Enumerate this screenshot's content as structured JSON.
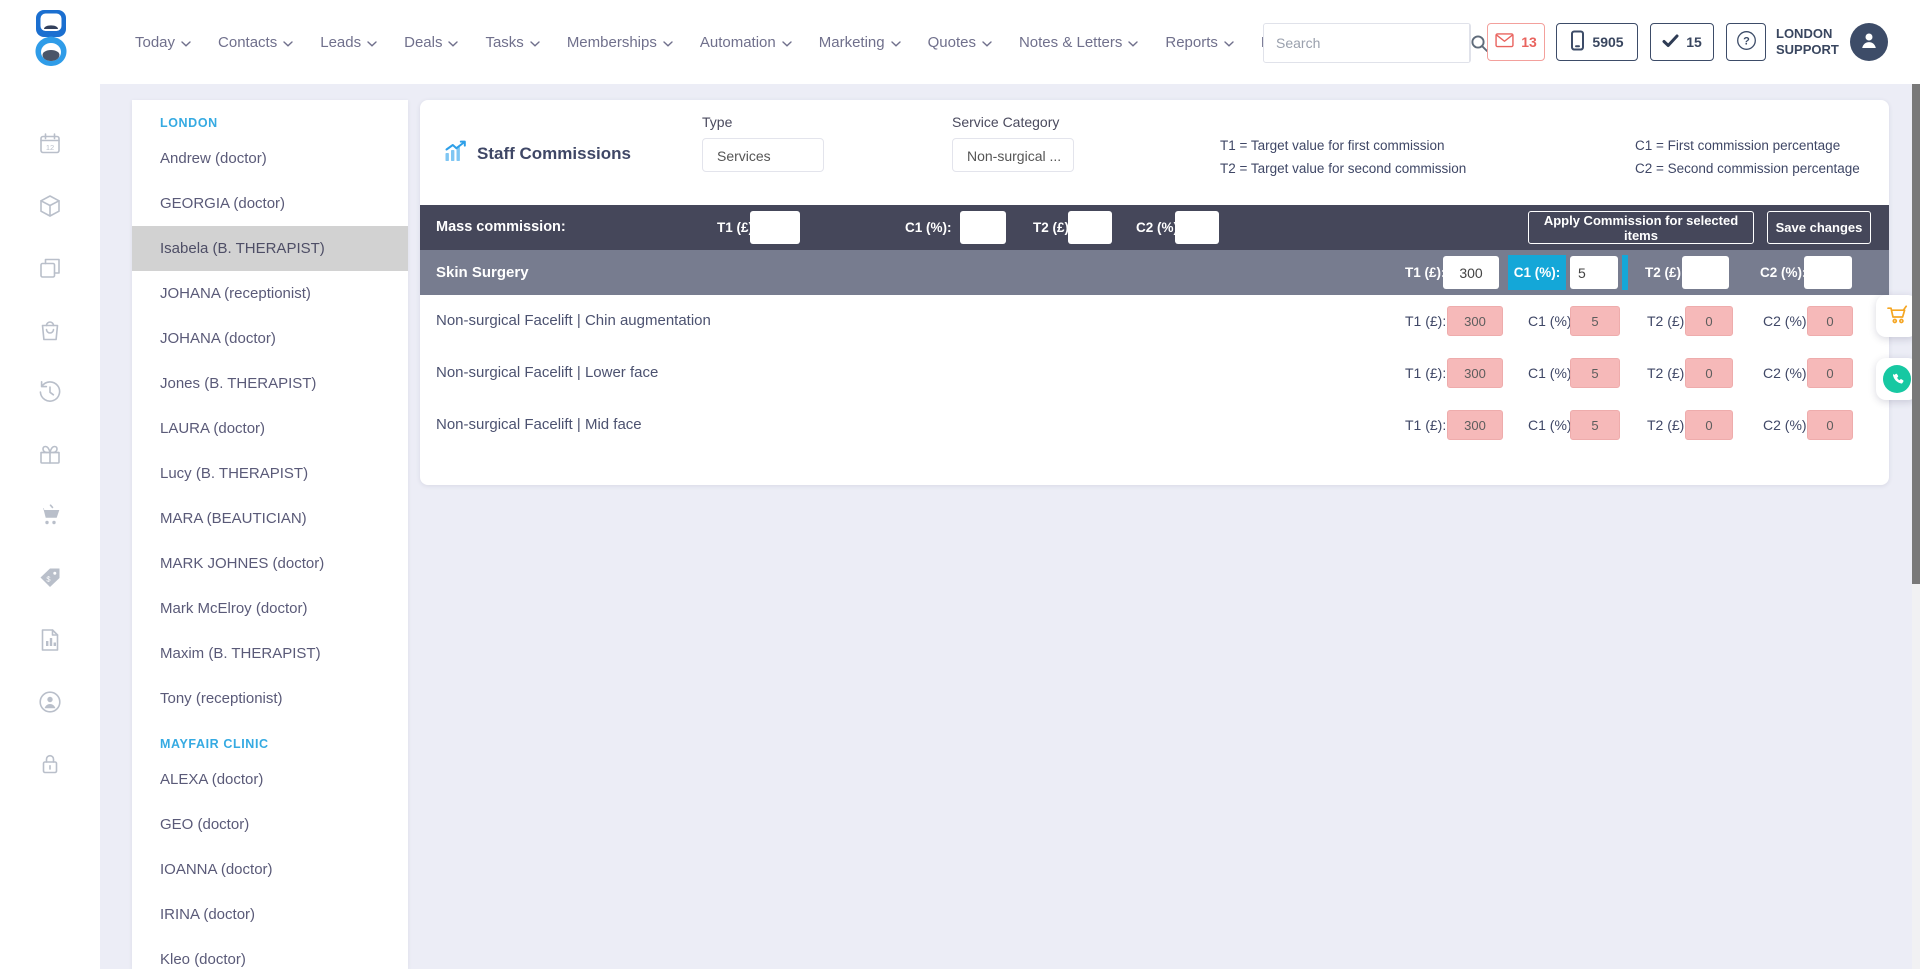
{
  "topnav": {
    "items": [
      {
        "label": "Today",
        "has_menu": true
      },
      {
        "label": "Contacts",
        "has_menu": true
      },
      {
        "label": "Leads",
        "has_menu": true
      },
      {
        "label": "Deals",
        "has_menu": true
      },
      {
        "label": "Tasks",
        "has_menu": true
      },
      {
        "label": "Memberships",
        "has_menu": true
      },
      {
        "label": "Automation",
        "has_menu": true
      },
      {
        "label": "Marketing",
        "has_menu": true
      },
      {
        "label": "Quotes",
        "has_menu": true
      },
      {
        "label": "Notes & Letters",
        "has_menu": true
      },
      {
        "label": "Reports",
        "has_menu": true
      },
      {
        "label": "Files",
        "has_menu": false
      }
    ],
    "search": {
      "placeholder": "Search"
    },
    "badges": {
      "messages": "13",
      "calls": "5905",
      "tasks": "15"
    },
    "user": {
      "line1": "LONDON",
      "line2": "SUPPORT"
    }
  },
  "rail": {
    "items": [
      {
        "icon": "calendar-icon"
      },
      {
        "icon": "package-icon"
      },
      {
        "icon": "copy-icon"
      },
      {
        "icon": "shopping-bag-icon"
      },
      {
        "icon": "history-icon"
      },
      {
        "icon": "gift-icon"
      },
      {
        "icon": "cart-icon"
      },
      {
        "icon": "price-tag-icon"
      },
      {
        "icon": "report-icon"
      },
      {
        "icon": "account-icon"
      },
      {
        "icon": "lock-icon"
      }
    ]
  },
  "staff_panel": {
    "groups": [
      {
        "name": "LONDON",
        "members": [
          {
            "label": "Andrew (doctor)",
            "selected": false
          },
          {
            "label": "GEORGIA (doctor)",
            "selected": false
          },
          {
            "label": "Isabela (B. THERAPIST)",
            "selected": true
          },
          {
            "label": "JOHANA (receptionist)",
            "selected": false
          },
          {
            "label": "JOHANA (doctor)",
            "selected": false
          },
          {
            "label": "Jones (B. THERAPIST)",
            "selected": false
          },
          {
            "label": "LAURA (doctor)",
            "selected": false
          },
          {
            "label": "Lucy (B. THERAPIST)",
            "selected": false
          },
          {
            "label": "MARA (BEAUTICIAN)",
            "selected": false
          },
          {
            "label": "MARK JOHNES (doctor)",
            "selected": false
          },
          {
            "label": "Mark McElroy (doctor)",
            "selected": false
          },
          {
            "label": "Maxim (B. THERAPIST)",
            "selected": false
          },
          {
            "label": "Tony (receptionist)",
            "selected": false
          }
        ]
      },
      {
        "name": "MAYFAIR CLINIC",
        "members": [
          {
            "label": "ALEXA (doctor)",
            "selected": false
          },
          {
            "label": "GEO (doctor)",
            "selected": false
          },
          {
            "label": "IOANNA (doctor)",
            "selected": false
          },
          {
            "label": "IRINA (doctor)",
            "selected": false
          },
          {
            "label": "Kleo (doctor)",
            "selected": false
          }
        ]
      }
    ]
  },
  "main": {
    "title": "Staff Commissions",
    "type_label": "Type",
    "type_value": "Services",
    "category_label": "Service Category",
    "category_value": "Non-surgical ...",
    "legend_col1": [
      "T1 = Target value for first commission",
      "T2 = Target value for second commission"
    ],
    "legend_col2": [
      "C1 = First commission percentage",
      "C2 = Second commission percentage"
    ],
    "mass": {
      "label": "Mass commission:",
      "fields": [
        {
          "label": "T1 (£):",
          "value": ""
        },
        {
          "label": "C1 (%):",
          "value": ""
        },
        {
          "label": "T2 (£):",
          "value": ""
        },
        {
          "label": "C2 (%):",
          "value": ""
        }
      ],
      "apply_button": "Apply Commission for selected items",
      "save_button": "Save changes"
    },
    "category_row": {
      "name": "Skin Surgery",
      "fields": [
        {
          "label": "T1 (£):",
          "value": "300",
          "state": "normal"
        },
        {
          "label": "C1 (%):",
          "value": "5",
          "state": "focused"
        },
        {
          "label": "T2 (£):",
          "value": "",
          "state": "normal"
        },
        {
          "label": "C2 (%):",
          "value": "",
          "state": "normal"
        }
      ]
    },
    "service_rows": [
      {
        "name": "Non-surgical Facelift | Chin augmentation",
        "fields": [
          {
            "label": "T1 (£):",
            "value": "300"
          },
          {
            "label": "C1 (%):",
            "value": "5"
          },
          {
            "label": "T2 (£):",
            "value": "0"
          },
          {
            "label": "C2 (%):",
            "value": "0"
          }
        ]
      },
      {
        "name": "Non-surgical Facelift | Lower face",
        "fields": [
          {
            "label": "T1 (£):",
            "value": "300"
          },
          {
            "label": "C1 (%):",
            "value": "5"
          },
          {
            "label": "T2 (£):",
            "value": "0"
          },
          {
            "label": "C2 (%):",
            "value": "0"
          }
        ]
      },
      {
        "name": "Non-surgical Facelift | Mid face",
        "fields": [
          {
            "label": "T1 (£):",
            "value": "300"
          },
          {
            "label": "C1 (%):",
            "value": "5"
          },
          {
            "label": "T2 (£):",
            "value": "0"
          },
          {
            "label": "C2 (%):",
            "value": "0"
          }
        ]
      }
    ]
  },
  "colors": {
    "accent_cyan": "#14a7d8",
    "dark_bar": "#45475a",
    "mid_bar": "#777c8f",
    "readonly_pink": "#f6b9b9",
    "alert_red": "#e9635e",
    "navy": "#3d4c68",
    "section_blue": "#35aae2",
    "chart_blue": "#2d9fe8"
  }
}
